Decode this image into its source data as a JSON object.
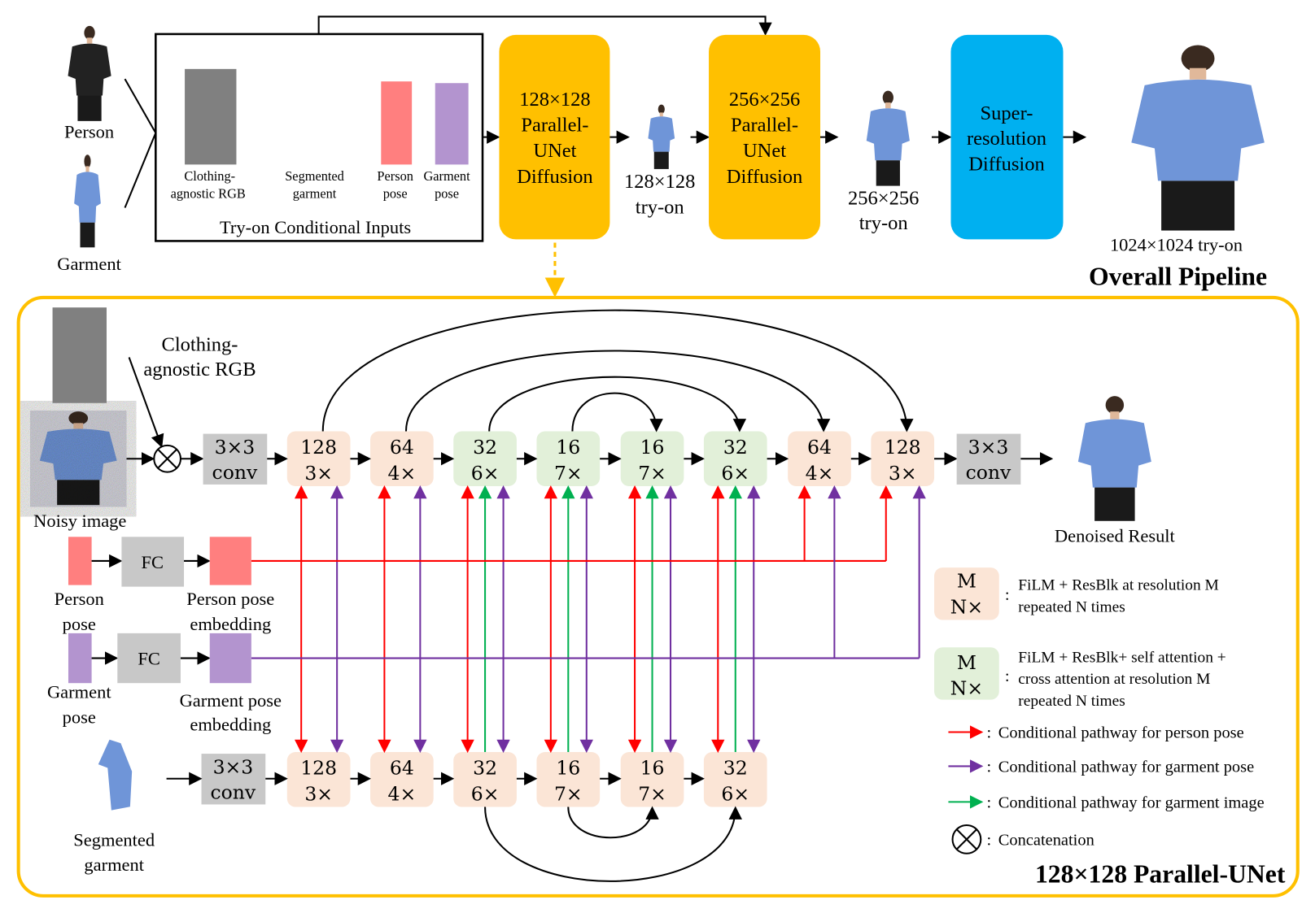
{
  "colors": {
    "diffusion_box": "#FFC000",
    "superres_box": "#00B0F0",
    "resblock": "#FBE5D6",
    "attention_block": "#E2F0D9",
    "conv": "#C8C8C8",
    "person_pose": "#FF7F7F",
    "garment_pose": "#B394CF",
    "person_pathway": "#FF0000",
    "garment_pose_pathway": "#7030A0",
    "garment_image_pathway": "#00B050",
    "border": "#FFC000"
  },
  "pipeline": {
    "title": "Overall Pipeline",
    "person_label": "Person",
    "garment_label": "Garment",
    "conditional_inputs": {
      "title": "Try-on Conditional Inputs",
      "items": [
        {
          "line1": "Clothing-",
          "line2": "agnostic RGB"
        },
        {
          "line1": "Segmented",
          "line2": "garment"
        },
        {
          "line1": "Person",
          "line2": "pose"
        },
        {
          "line1": "Garment",
          "line2": "pose"
        }
      ]
    },
    "stage1": [
      "128×128",
      "Parallel-",
      "UNet",
      "Diffusion"
    ],
    "stage1_output": [
      "128×128",
      "try-on"
    ],
    "stage2": [
      "256×256",
      "Parallel-",
      "UNet",
      "Diffusion"
    ],
    "stage2_output": [
      "256×256",
      "try-on"
    ],
    "stage3": [
      "Super-",
      "resolution",
      "Diffusion"
    ],
    "final_output": "1024×1024 try-on"
  },
  "unet": {
    "title": "128×128 Parallel-UNet",
    "clothing_agnostic": [
      "Clothing-",
      "agnostic RGB"
    ],
    "noisy_image": "Noisy image",
    "conv": [
      "3×3",
      "conv"
    ],
    "denoised": "Denoised Result",
    "main_blocks": [
      {
        "m": "128",
        "n": "3×",
        "type": "resblock"
      },
      {
        "m": "64",
        "n": "4×",
        "type": "resblock"
      },
      {
        "m": "32",
        "n": "6×",
        "type": "attention"
      },
      {
        "m": "16",
        "n": "7×",
        "type": "attention"
      },
      {
        "m": "16",
        "n": "7×",
        "type": "attention"
      },
      {
        "m": "32",
        "n": "6×",
        "type": "attention"
      },
      {
        "m": "64",
        "n": "4×",
        "type": "resblock"
      },
      {
        "m": "128",
        "n": "3×",
        "type": "resblock"
      }
    ],
    "garment_blocks": [
      {
        "m": "128",
        "n": "3×",
        "type": "resblock"
      },
      {
        "m": "64",
        "n": "4×",
        "type": "resblock"
      },
      {
        "m": "32",
        "n": "6×",
        "type": "resblock"
      },
      {
        "m": "16",
        "n": "7×",
        "type": "resblock"
      },
      {
        "m": "16",
        "n": "7×",
        "type": "resblock"
      },
      {
        "m": "32",
        "n": "6×",
        "type": "resblock"
      }
    ],
    "fc": "FC",
    "person_pose": [
      "Person",
      "pose"
    ],
    "person_pose_embedding": [
      "Person pose",
      "embedding"
    ],
    "garment_pose": [
      "Garment",
      "pose"
    ],
    "garment_pose_embedding": [
      "Garment pose",
      "embedding"
    ],
    "segmented_garment": [
      "Segmented",
      "garment"
    ]
  },
  "legend": {
    "block_m": "M",
    "block_n": "N×",
    "sep": ":",
    "resblock": [
      "FiLM + ResBlk at resolution M",
      "repeated N times"
    ],
    "attention": [
      "FiLM + ResBlk+ self attention +",
      "cross attention at resolution M",
      "repeated N times"
    ],
    "person_pathway": "Conditional pathway for person pose",
    "garment_pose_pathway": "Conditional pathway for garment pose",
    "garment_image_pathway": "Conditional pathway for garment image",
    "concatenation": "Concatenation"
  }
}
